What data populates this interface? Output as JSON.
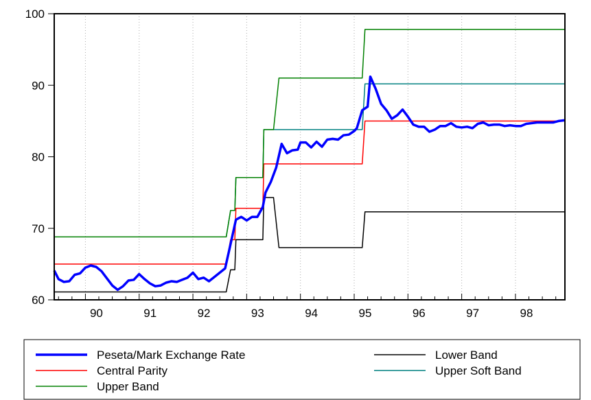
{
  "chart_data": {
    "type": "line",
    "title": "",
    "xlabel": "",
    "ylabel": "",
    "xlim": [
      89.42,
      98.92
    ],
    "ylim": [
      60,
      100
    ],
    "x_ticks": [
      90,
      91,
      92,
      93,
      94,
      95,
      96,
      97,
      98
    ],
    "x_tick_labels": [
      "90",
      "91",
      "92",
      "93",
      "94",
      "95",
      "96",
      "97",
      "98"
    ],
    "y_ticks": [
      60,
      70,
      80,
      90,
      100
    ],
    "y_tick_labels": [
      "60",
      "70",
      "80",
      "90",
      "100"
    ],
    "grid": "vertical dotted",
    "legend_position": "bottom",
    "series": [
      {
        "name": "Peseta/Mark Exchange Rate",
        "color": "#0000ff",
        "style": "thick",
        "points": [
          [
            89.42,
            64.1
          ],
          [
            89.5,
            62.9
          ],
          [
            89.6,
            62.5
          ],
          [
            89.7,
            62.6
          ],
          [
            89.8,
            63.5
          ],
          [
            89.9,
            63.7
          ],
          [
            90.0,
            64.5
          ],
          [
            90.1,
            64.8
          ],
          [
            90.2,
            64.6
          ],
          [
            90.3,
            64.0
          ],
          [
            90.4,
            63.0
          ],
          [
            90.5,
            62.0
          ],
          [
            90.6,
            61.4
          ],
          [
            90.7,
            61.9
          ],
          [
            90.8,
            62.7
          ],
          [
            90.9,
            62.8
          ],
          [
            91.0,
            63.6
          ],
          [
            91.1,
            62.9
          ],
          [
            91.2,
            62.3
          ],
          [
            91.3,
            61.9
          ],
          [
            91.4,
            62.0
          ],
          [
            91.5,
            62.4
          ],
          [
            91.6,
            62.6
          ],
          [
            91.7,
            62.5
          ],
          [
            91.8,
            62.8
          ],
          [
            91.9,
            63.1
          ],
          [
            92.0,
            63.8
          ],
          [
            92.1,
            62.9
          ],
          [
            92.2,
            63.1
          ],
          [
            92.3,
            62.6
          ],
          [
            92.4,
            63.2
          ],
          [
            92.5,
            63.8
          ],
          [
            92.6,
            64.4
          ],
          [
            92.7,
            67.8
          ],
          [
            92.8,
            71.2
          ],
          [
            92.9,
            71.6
          ],
          [
            93.0,
            71.1
          ],
          [
            93.1,
            71.6
          ],
          [
            93.2,
            71.6
          ],
          [
            93.3,
            73.0
          ],
          [
            93.35,
            75.0
          ],
          [
            93.45,
            76.5
          ],
          [
            93.55,
            78.5
          ],
          [
            93.65,
            81.8
          ],
          [
            93.75,
            80.5
          ],
          [
            93.85,
            80.9
          ],
          [
            93.95,
            81.0
          ],
          [
            94.0,
            82.0
          ],
          [
            94.1,
            82.0
          ],
          [
            94.2,
            81.3
          ],
          [
            94.3,
            82.1
          ],
          [
            94.4,
            81.4
          ],
          [
            94.5,
            82.4
          ],
          [
            94.6,
            82.5
          ],
          [
            94.7,
            82.4
          ],
          [
            94.8,
            83.0
          ],
          [
            94.9,
            83.1
          ],
          [
            95.0,
            83.6
          ],
          [
            95.05,
            84.0
          ],
          [
            95.15,
            86.5
          ],
          [
            95.25,
            87.0
          ],
          [
            95.3,
            91.2
          ],
          [
            95.4,
            89.5
          ],
          [
            95.5,
            87.4
          ],
          [
            95.6,
            86.5
          ],
          [
            95.7,
            85.3
          ],
          [
            95.8,
            85.8
          ],
          [
            95.9,
            86.6
          ],
          [
            96.0,
            85.6
          ],
          [
            96.1,
            84.5
          ],
          [
            96.2,
            84.2
          ],
          [
            96.3,
            84.2
          ],
          [
            96.4,
            83.5
          ],
          [
            96.5,
            83.8
          ],
          [
            96.6,
            84.3
          ],
          [
            96.7,
            84.3
          ],
          [
            96.8,
            84.7
          ],
          [
            96.9,
            84.2
          ],
          [
            97.0,
            84.1
          ],
          [
            97.1,
            84.2
          ],
          [
            97.2,
            84.0
          ],
          [
            97.3,
            84.6
          ],
          [
            97.4,
            84.8
          ],
          [
            97.5,
            84.4
          ],
          [
            97.6,
            84.5
          ],
          [
            97.7,
            84.5
          ],
          [
            97.8,
            84.3
          ],
          [
            97.9,
            84.4
          ],
          [
            98.0,
            84.3
          ],
          [
            98.1,
            84.3
          ],
          [
            98.2,
            84.6
          ],
          [
            98.3,
            84.7
          ],
          [
            98.4,
            84.8
          ],
          [
            98.5,
            84.8
          ],
          [
            98.6,
            84.8
          ],
          [
            98.7,
            84.8
          ],
          [
            98.8,
            85.0
          ],
          [
            98.92,
            85.1
          ]
        ]
      },
      {
        "name": "Central Parity",
        "color": "#ff0000",
        "style": "step",
        "points": [
          [
            89.42,
            65.0
          ],
          [
            92.62,
            65.0
          ],
          [
            92.7,
            68.4
          ],
          [
            92.78,
            68.4
          ],
          [
            92.8,
            72.8
          ],
          [
            93.3,
            72.8
          ],
          [
            93.32,
            79.0
          ],
          [
            95.15,
            79.0
          ],
          [
            95.2,
            85.0
          ],
          [
            98.92,
            85.0
          ]
        ]
      },
      {
        "name": "Upper Band",
        "color": "#008000",
        "style": "step",
        "points": [
          [
            89.42,
            68.8
          ],
          [
            92.62,
            68.8
          ],
          [
            92.7,
            72.5
          ],
          [
            92.78,
            72.5
          ],
          [
            92.8,
            77.1
          ],
          [
            93.3,
            77.1
          ],
          [
            93.32,
            83.8
          ],
          [
            93.5,
            83.8
          ],
          [
            93.6,
            91.0
          ],
          [
            95.15,
            91.0
          ],
          [
            95.2,
            97.8
          ],
          [
            98.92,
            97.8
          ]
        ]
      },
      {
        "name": "Lower Band",
        "color": "#000000",
        "style": "step",
        "points": [
          [
            89.42,
            61.1
          ],
          [
            92.62,
            61.1
          ],
          [
            92.7,
            64.2
          ],
          [
            92.78,
            64.2
          ],
          [
            92.8,
            68.4
          ],
          [
            93.3,
            68.4
          ],
          [
            93.32,
            74.3
          ],
          [
            93.5,
            74.3
          ],
          [
            93.6,
            67.3
          ],
          [
            95.15,
            67.3
          ],
          [
            95.2,
            72.3
          ],
          [
            98.92,
            72.3
          ]
        ]
      },
      {
        "name": "Upper Soft Band",
        "color": "#008080",
        "style": "step",
        "points": [
          [
            89.42,
            68.8
          ],
          [
            92.62,
            68.8
          ],
          [
            92.7,
            72.5
          ],
          [
            92.78,
            72.5
          ],
          [
            92.8,
            77.1
          ],
          [
            93.3,
            77.1
          ],
          [
            93.32,
            83.8
          ],
          [
            95.15,
            83.8
          ],
          [
            95.2,
            90.2
          ],
          [
            98.92,
            90.2
          ]
        ]
      }
    ],
    "legend": [
      {
        "series": 0,
        "label": "Peseta/Mark Exchange Rate",
        "col": 0,
        "row": 0
      },
      {
        "series": 3,
        "label": "Lower Band",
        "col": 1,
        "row": 0
      },
      {
        "series": 1,
        "label": "Central Parity",
        "col": 0,
        "row": 1
      },
      {
        "series": 4,
        "label": "Upper Soft Band",
        "col": 1,
        "row": 1
      },
      {
        "series": 2,
        "label": "Upper Band",
        "col": 0,
        "row": 2
      }
    ]
  }
}
